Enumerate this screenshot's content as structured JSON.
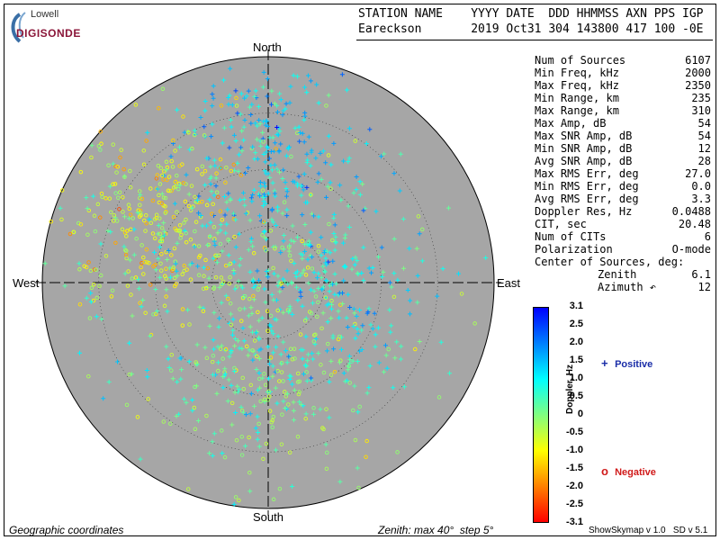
{
  "header": {
    "logo_top": "Lowell",
    "logo_bottom": "DIGISONDE",
    "line1": "STATION NAME    YYYY DATE  DDD HHMMSS AXN PPS IGP",
    "line2": "Eareckson       2019 Oct31 304 143800 417 100 -0E"
  },
  "directions": {
    "north": "North",
    "south": "South",
    "west": "West",
    "east": "East"
  },
  "stats": [
    {
      "label": "Num of Sources",
      "value": "6107"
    },
    {
      "label": "Min Freq, kHz",
      "value": "2000"
    },
    {
      "label": "Max Freq, kHz",
      "value": "2350"
    },
    {
      "label": "Min Range, km",
      "value": "235"
    },
    {
      "label": "Max Range, km",
      "value": "310"
    },
    {
      "label": "Max Amp, dB",
      "value": "54"
    },
    {
      "label": "Max SNR Amp, dB",
      "value": "54"
    },
    {
      "label": "Min SNR Amp, dB",
      "value": "12"
    },
    {
      "label": "Avg SNR Amp, dB",
      "value": "28"
    },
    {
      "label": "Max RMS Err, deg",
      "value": "27.0"
    },
    {
      "label": "Min RMS Err, deg",
      "value": "0.0"
    },
    {
      "label": "Avg RMS Err, deg",
      "value": "3.3"
    },
    {
      "label": "Doppler Res, Hz",
      "value": "0.0488"
    },
    {
      "label": "CIT, sec",
      "value": "20.48"
    },
    {
      "label": "Num of CITs",
      "value": "6"
    },
    {
      "label": "Polarization",
      "value": "O-mode"
    },
    {
      "label": "Center of Sources, deg:",
      "value": ""
    },
    {
      "label": "Zenith",
      "value": "6.1"
    },
    {
      "label": "Azimuth ↶",
      "value": "12"
    }
  ],
  "colorbar": {
    "label": "Doppler, Hz",
    "ticks": [
      "3.1",
      "2.5",
      "2.0",
      "1.5",
      "1.0",
      "0.5",
      "0",
      "-0.5",
      "-1.0",
      "-1.5",
      "-2.0",
      "-2.5",
      "-3.1"
    ],
    "colors": [
      "#0000ff",
      "#0080ff",
      "#00ffff",
      "#80ff80",
      "#ffff00",
      "#ff8000",
      "#ff0000"
    ]
  },
  "legend": {
    "positive": "Positive",
    "negative": "Negative",
    "positive_symbol": "+",
    "negative_symbol": "o"
  },
  "footer": {
    "left": "Geographic coordinates",
    "middle": "Zenith: max 40°  step 5°",
    "right": "ShowSkymap v 1.0   SD v 5.1"
  },
  "chart_data": {
    "type": "scatter",
    "title": "",
    "projection": "polar sky map",
    "zenith_max_deg": 40,
    "zenith_step_deg": 5,
    "background_color": "#a6a6a6",
    "num_sources": 6107,
    "doppler_range_hz": [
      -3.1,
      3.1
    ],
    "clusters": [
      {
        "name": "north-positive",
        "azimuth_deg": 0,
        "zenith_deg": 24,
        "spread_deg": 8,
        "doppler_hz": 1.3,
        "share": 0.18
      },
      {
        "name": "northwest-negative",
        "azimuth_deg": 300,
        "zenith_deg": 23,
        "spread_deg": 8,
        "doppler_hz": -0.8,
        "share": 0.22
      },
      {
        "name": "center-mixed",
        "azimuth_deg": 0,
        "zenith_deg": 0,
        "spread_deg": 14,
        "doppler_hz": 0.5,
        "share": 0.25
      },
      {
        "name": "east-positive",
        "azimuth_deg": 95,
        "zenith_deg": 10,
        "spread_deg": 8,
        "doppler_hz": 1.0,
        "share": 0.12
      },
      {
        "name": "south-negative",
        "azimuth_deg": 185,
        "zenith_deg": 17,
        "spread_deg": 9,
        "doppler_hz": 0.1,
        "share": 0.15
      },
      {
        "name": "scattered",
        "azimuth_deg": 0,
        "zenith_deg": 0,
        "spread_deg": 30,
        "doppler_hz": 0.0,
        "share": 0.08
      }
    ]
  }
}
